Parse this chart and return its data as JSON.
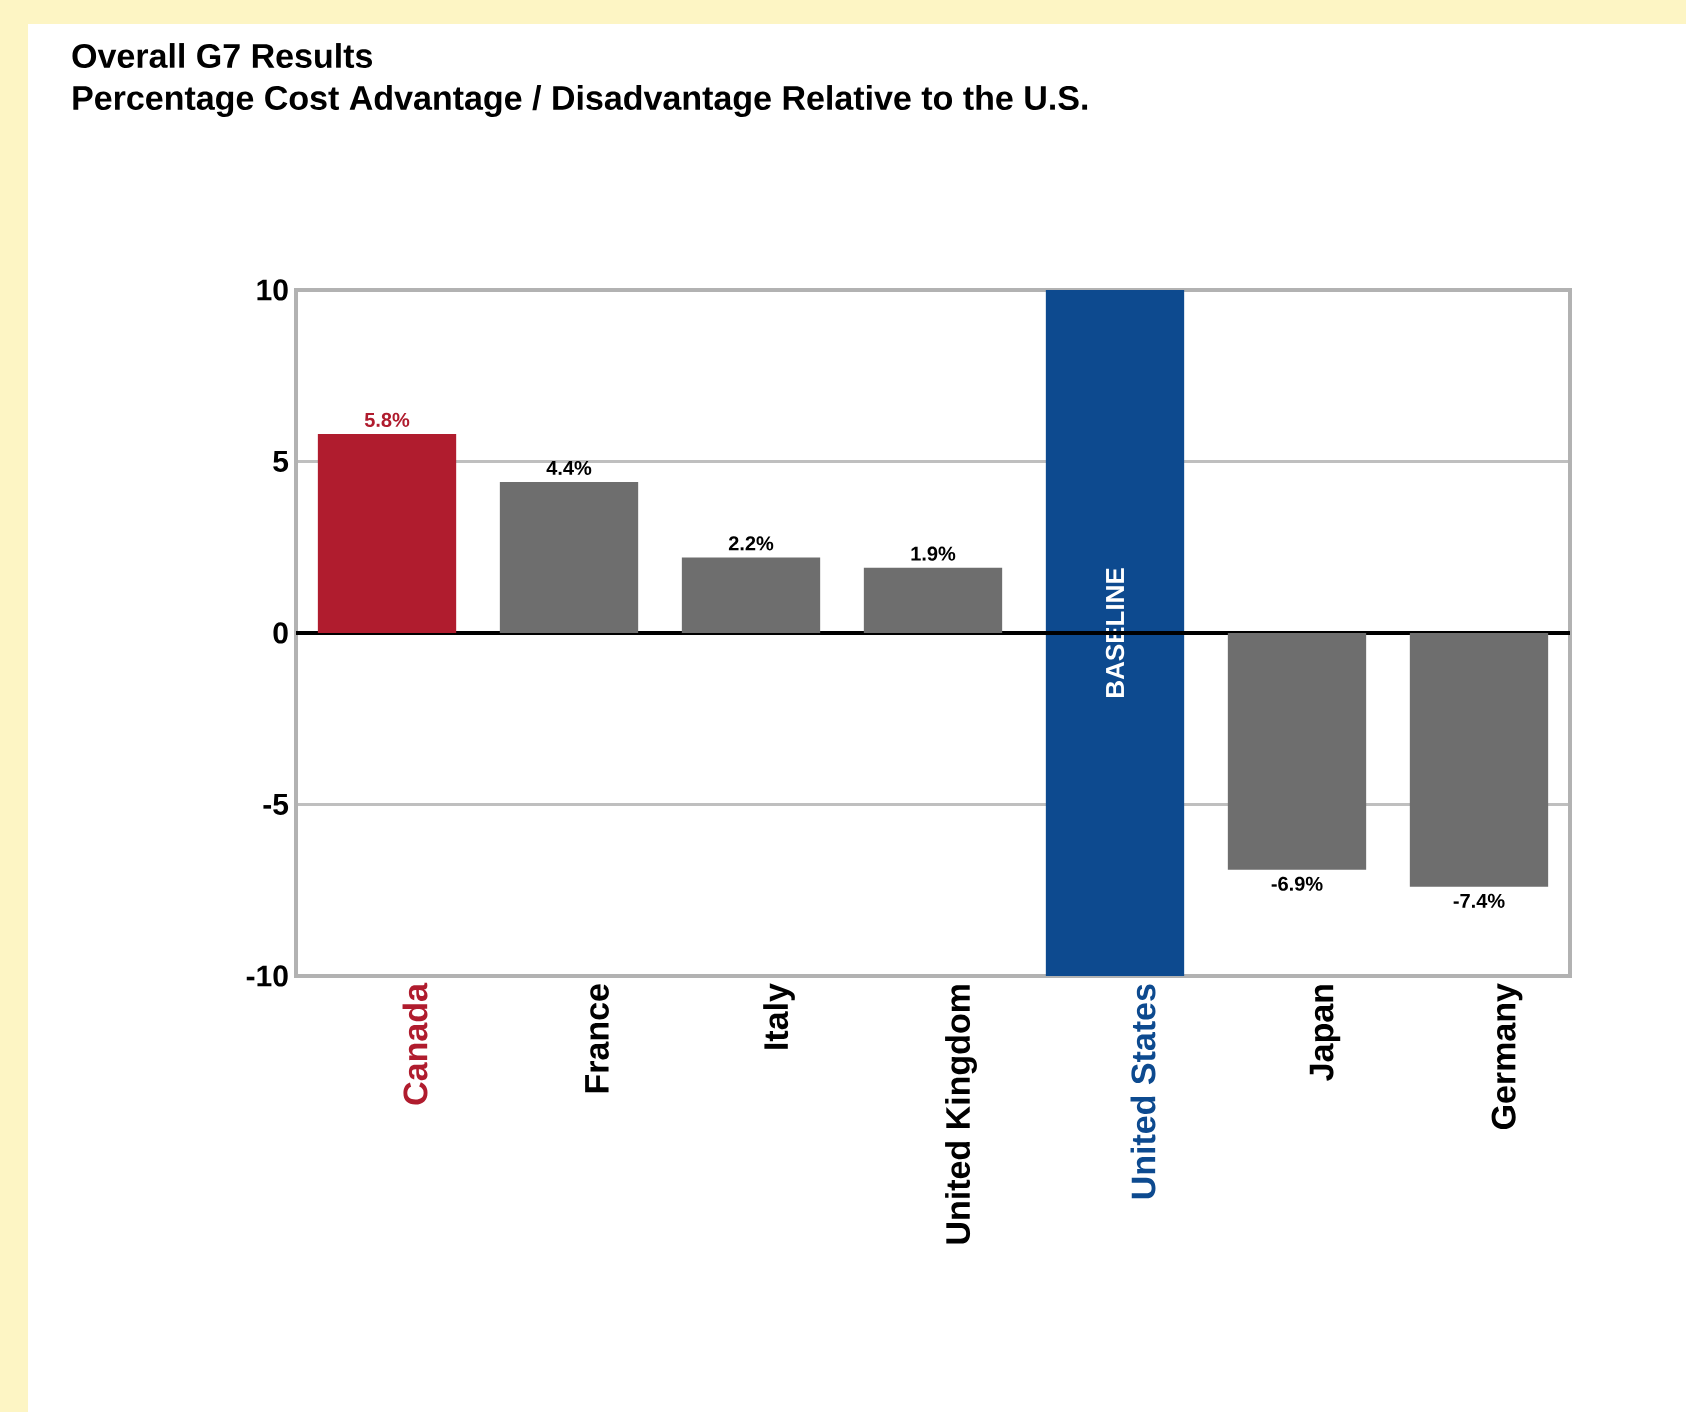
{
  "chart_data": {
    "type": "bar",
    "title": "Overall G7 Results",
    "subtitle": "Percentage Cost Advantage / Disadvantage Relative to the U.S.",
    "categories": [
      "Canada",
      "France",
      "Italy",
      "United Kingdom",
      "United States",
      "Japan",
      "Germany"
    ],
    "values": [
      5.8,
      4.4,
      2.2,
      1.9,
      null,
      -6.9,
      -7.4
    ],
    "value_labels": [
      "5.8%",
      "4.4%",
      "2.2%",
      "1.9%",
      null,
      "-6.9%",
      "-7.4%"
    ],
    "colors": [
      "#b01c2e",
      "#6e6e6e",
      "#6e6e6e",
      "#6e6e6e",
      "#6e6e6e",
      "#6e6e6e",
      "#6e6e6e"
    ],
    "bands": [
      {
        "axis": "x",
        "from": "United States",
        "to": "United States",
        "label": "BASELINE",
        "color": "#0d4a8f"
      }
    ],
    "ylim": [
      -10,
      10
    ],
    "yticks": [
      -10,
      -5,
      0,
      5,
      10
    ],
    "grid": "y"
  }
}
